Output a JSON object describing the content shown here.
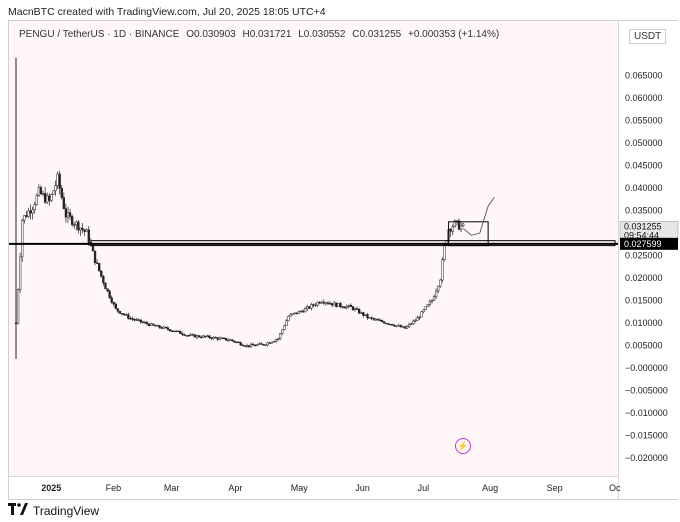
{
  "header": {
    "credit": "MacnBTC created with TradingView.com, Jul 20, 2025 18:05 UTC+4"
  },
  "legend": {
    "symbol": "PENGU / TetherUS · 1D · BINANCE",
    "open": "O0.030903",
    "high": "H0.031721",
    "low": "L0.030552",
    "close": "C0.031255",
    "change": "+0.000353 (+1.14%)"
  },
  "currency": "USDT",
  "brand": {
    "name": "TradingView"
  },
  "colors": {
    "background": "#fff6f7",
    "candle": "#222222",
    "support_line": "#000000",
    "price_tag": "#e6e6e6",
    "support_tag": "#000000"
  },
  "chart_data": {
    "type": "candlestick",
    "y_ticks": [
      "0.065000",
      "0.060000",
      "0.055000",
      "0.050000",
      "0.045000",
      "0.040000",
      "0.035000",
      "0.030000",
      "0.025000",
      "0.020000",
      "0.015000",
      "0.010000",
      "0.005000",
      "−0.000000",
      "−0.005000",
      "−0.010000",
      "−0.015000",
      "−0.020000"
    ],
    "y_tick_values": [
      0.065,
      0.06,
      0.055,
      0.05,
      0.045,
      0.04,
      0.035,
      0.03,
      0.025,
      0.02,
      0.015,
      0.01,
      0.005,
      0.0,
      -0.005,
      -0.01,
      -0.015,
      -0.02
    ],
    "x_ticks": [
      "2025",
      "Feb",
      "Mar",
      "Apr",
      "May",
      "Jun",
      "Jul",
      "Aug",
      "Sep",
      "Oc"
    ],
    "ylim": [
      -0.0225,
      0.0705
    ],
    "price_label": {
      "price": "0.031255",
      "countdown": "09:54:44"
    },
    "support_label": "0.027599",
    "support_level": 0.027599,
    "close_path": [
      [
        "2024-12-17",
        0.01
      ],
      [
        "2024-12-20",
        0.033
      ],
      [
        "2024-12-25",
        0.036
      ],
      [
        "2024-12-28",
        0.039
      ],
      [
        "2025-01-02",
        0.037
      ],
      [
        "2025-01-06",
        0.042
      ],
      [
        "2025-01-10",
        0.034
      ],
      [
        "2025-01-15",
        0.032
      ],
      [
        "2025-01-20",
        0.03
      ],
      [
        "2025-01-24",
        0.024
      ],
      [
        "2025-01-29",
        0.018
      ],
      [
        "2025-02-03",
        0.013
      ],
      [
        "2025-02-10",
        0.011
      ],
      [
        "2025-02-20",
        0.0095
      ],
      [
        "2025-03-01",
        0.0085
      ],
      [
        "2025-03-10",
        0.0072
      ],
      [
        "2025-03-20",
        0.0068
      ],
      [
        "2025-03-30",
        0.0062
      ],
      [
        "2025-04-07",
        0.0049
      ],
      [
        "2025-04-15",
        0.0052
      ],
      [
        "2025-04-22",
        0.0065
      ],
      [
        "2025-04-27",
        0.0115
      ],
      [
        "2025-05-05",
        0.013
      ],
      [
        "2025-05-13",
        0.015
      ],
      [
        "2025-05-20",
        0.014
      ],
      [
        "2025-05-27",
        0.0135
      ],
      [
        "2025-06-05",
        0.011
      ],
      [
        "2025-06-15",
        0.0098
      ],
      [
        "2025-06-22",
        0.0088
      ],
      [
        "2025-06-28",
        0.011
      ],
      [
        "2025-07-05",
        0.015
      ],
      [
        "2025-07-09",
        0.02
      ],
      [
        "2025-07-11",
        0.027
      ],
      [
        "2025-07-13",
        0.031
      ],
      [
        "2025-07-16",
        0.032
      ],
      [
        "2025-07-20",
        0.031255
      ]
    ],
    "drawings": [
      {
        "kind": "support_zone",
        "from": "2025-01-22",
        "to": "2025-10-01",
        "top": 0.0283,
        "bottom": 0.0272
      },
      {
        "kind": "consolidation_box",
        "from": "2025-07-13",
        "to": "2025-08-01",
        "top": 0.0325,
        "bottom": 0.0272
      },
      {
        "kind": "projection",
        "points": [
          [
            "2025-07-20",
            0.031
          ],
          [
            "2025-07-24",
            0.0295
          ],
          [
            "2025-07-28",
            0.03
          ],
          [
            "2025-08-01",
            0.036
          ],
          [
            "2025-08-04",
            0.038
          ]
        ]
      }
    ]
  }
}
